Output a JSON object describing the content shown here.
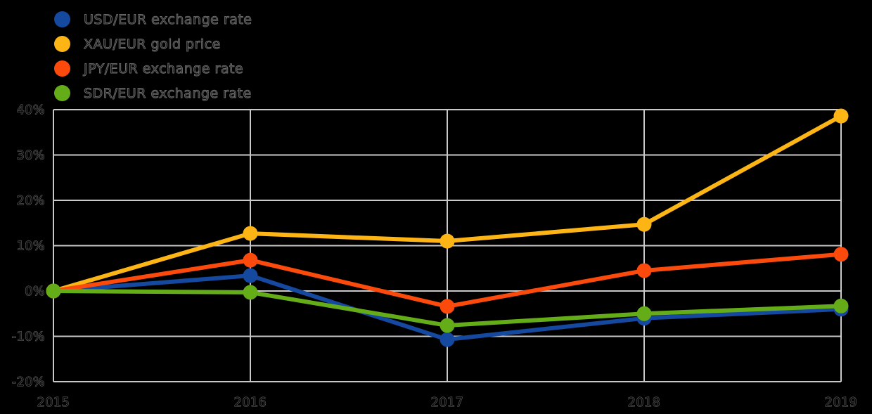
{
  "figure": {
    "background": "#000000",
    "grid_color": "#c9c9c9",
    "axis_text_color": "#0d0d0d"
  },
  "chart_data": {
    "type": "line",
    "title": "",
    "xlabel": "",
    "ylabel": "",
    "unit": "percent change",
    "grid": true,
    "legend_position": "top-left",
    "x": [
      2015,
      2016,
      2017,
      2018,
      2019
    ],
    "x_tick_labels": [
      "2015",
      "2016",
      "2017",
      "2018",
      "2019"
    ],
    "ylim": [
      -20,
      40
    ],
    "y_tick_step": 10,
    "y_tick_labels": [
      "40%",
      "30%",
      "20%",
      "10%",
      "0%",
      "-10%",
      "-20%"
    ],
    "series": [
      {
        "name": "USD/EUR exchange rate",
        "color": "#15489f",
        "values": [
          0,
          3.4,
          -10.7,
          -6.0,
          -4.0
        ]
      },
      {
        "name": "XAU/EUR gold price",
        "color": "#fcb515",
        "values": [
          0,
          12.7,
          11.0,
          14.7,
          38.6
        ]
      },
      {
        "name": "JPY/EUR exchange rate",
        "color": "#fb4a0c",
        "values": [
          0,
          6.8,
          -3.4,
          4.5,
          8.1
        ]
      },
      {
        "name": "SDR/EUR exchange rate",
        "color": "#65ad18",
        "values": [
          0,
          -0.3,
          -7.6,
          -5.0,
          -3.3
        ]
      }
    ]
  }
}
